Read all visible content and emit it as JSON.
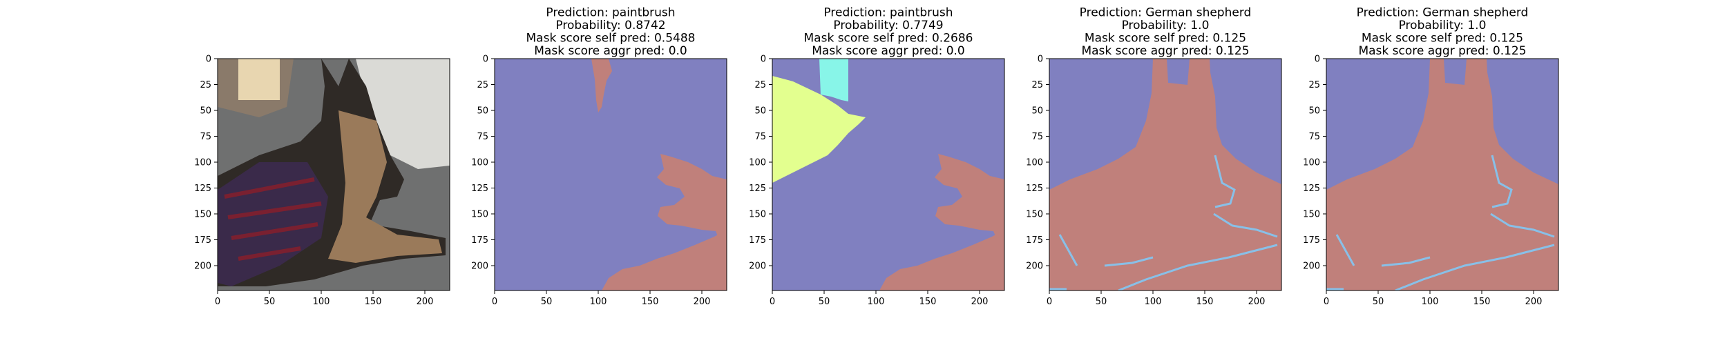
{
  "figure": {
    "background": "#ffffff",
    "colors": {
      "mask_background": "#8080c0",
      "mask_dog": "#c0807b",
      "mask_cyan": "#88f5e8",
      "mask_yellow": "#e3ff8f"
    }
  },
  "chart_data": [
    {
      "type": "image",
      "content": "photo-german-shepherd",
      "title_lines": [],
      "xlim": [
        0,
        224
      ],
      "ylim": [
        224,
        0
      ],
      "xticks": [
        0,
        50,
        100,
        150,
        200
      ],
      "yticks": [
        0,
        25,
        50,
        75,
        100,
        125,
        150,
        175,
        200
      ]
    },
    {
      "type": "heatmap",
      "content": "segmentation-mask",
      "title_lines": [
        "Prediction: paintbrush",
        "Probability: 0.8742",
        "Mask score self pred: 0.5488",
        "Mask score aggr pred: 0.0"
      ],
      "xlim": [
        0,
        224
      ],
      "ylim": [
        224,
        0
      ],
      "xticks": [
        0,
        50,
        100,
        150,
        200
      ],
      "yticks": [
        0,
        25,
        50,
        75,
        100,
        125,
        150,
        175,
        200
      ]
    },
    {
      "type": "heatmap",
      "content": "segmentation-mask",
      "title_lines": [
        "Prediction: paintbrush",
        "Probability: 0.7749",
        "Mask score self pred: 0.2686",
        "Mask score aggr pred: 0.0"
      ],
      "xlim": [
        0,
        224
      ],
      "ylim": [
        224,
        0
      ],
      "xticks": [
        0,
        50,
        100,
        150,
        200
      ],
      "yticks": [
        0,
        25,
        50,
        75,
        100,
        125,
        150,
        175,
        200
      ]
    },
    {
      "type": "heatmap",
      "content": "segmentation-mask",
      "title_lines": [
        "Prediction: German shepherd",
        "Probability: 1.0",
        "Mask score self pred: 0.125",
        "Mask score aggr pred: 0.125"
      ],
      "xlim": [
        0,
        224
      ],
      "ylim": [
        224,
        0
      ],
      "xticks": [
        0,
        50,
        100,
        150,
        200
      ],
      "yticks": [
        0,
        25,
        50,
        75,
        100,
        125,
        150,
        175,
        200
      ]
    },
    {
      "type": "heatmap",
      "content": "segmentation-mask",
      "title_lines": [
        "Prediction: German shepherd",
        "Probability: 1.0",
        "Mask score self pred: 0.125",
        "Mask score aggr pred: 0.125"
      ],
      "xlim": [
        0,
        224
      ],
      "ylim": [
        224,
        0
      ],
      "xticks": [
        0,
        50,
        100,
        150,
        200
      ],
      "yticks": [
        0,
        25,
        50,
        75,
        100,
        125,
        150,
        175,
        200
      ]
    }
  ]
}
